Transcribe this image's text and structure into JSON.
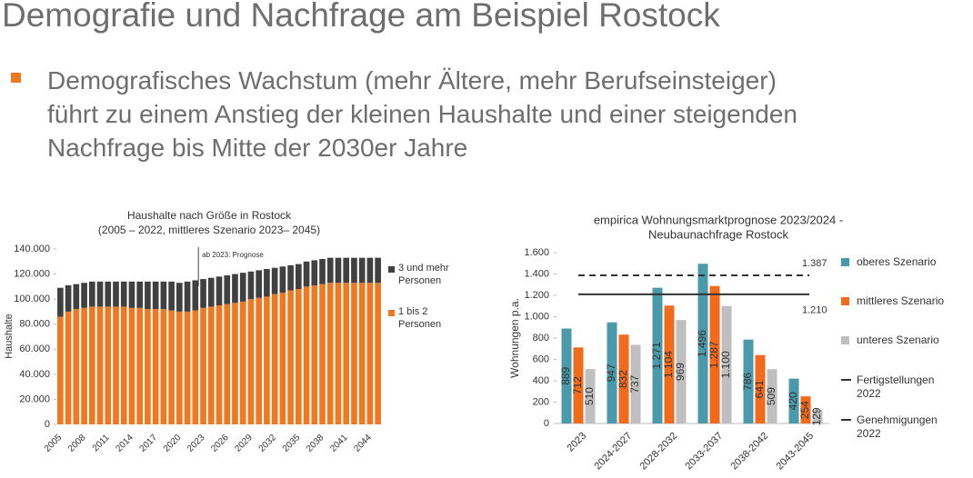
{
  "title": "Demografie und Nachfrage am Beispiel Rostock",
  "bullet": [
    "Demografisches Wachstum (mehr Ältere, mehr Berufseinsteiger)",
    "führt zu einem Anstieg der kleinen Haushalte und einer steigenden",
    "Nachfrage bis Mitte der 2030er Jahre"
  ],
  "chart_data": [
    {
      "type": "stacked_bar",
      "title": "Haushalte nach Größe in Rostock",
      "subtitle": "(2005 – 2022, mittleres Szenario 2023– 2045)",
      "y_label": "Haushalte",
      "categories": [
        "2005",
        null,
        null,
        "2008",
        null,
        null,
        "2011",
        null,
        null,
        "2014",
        null,
        null,
        "2017",
        null,
        null,
        "2020",
        null,
        null,
        "2023",
        null,
        null,
        "2026",
        null,
        null,
        "2029",
        null,
        null,
        "2032",
        null,
        null,
        "2035",
        null,
        null,
        "2038",
        null,
        null,
        "2041",
        null,
        null,
        "2044",
        null
      ],
      "series": [
        {
          "name": "1 bis 2 Personen",
          "color": "#f07820",
          "values": [
            86000,
            90000,
            92000,
            93000,
            94000,
            94000,
            94000,
            94000,
            94000,
            93000,
            93000,
            92000,
            92000,
            92000,
            91000,
            90000,
            90000,
            91000,
            93000,
            94000,
            95000,
            96000,
            97000,
            98000,
            100000,
            101000,
            102000,
            104000,
            105000,
            107000,
            108000,
            110000,
            111000,
            112000,
            113000,
            113000,
            113000,
            113000,
            113000,
            113000,
            113000
          ]
        },
        {
          "name": "3 und mehr Personen",
          "color": "#404040",
          "values": [
            23000,
            21000,
            20000,
            20000,
            20000,
            20000,
            20000,
            20000,
            20000,
            21000,
            21000,
            22000,
            22000,
            22000,
            23000,
            23000,
            24000,
            24000,
            23000,
            23000,
            23000,
            23000,
            23000,
            23000,
            22000,
            22000,
            22000,
            21000,
            21000,
            20000,
            20000,
            20000,
            20000,
            20000,
            20000,
            20000,
            20000,
            20000,
            20000,
            20000,
            20000
          ]
        }
      ],
      "ylim": [
        0,
        140000
      ],
      "yticks": [
        0,
        {
          "value": 20000,
          "label": "20.000"
        },
        {
          "value": 40000,
          "label": "40.000"
        },
        {
          "value": 60000,
          "label": "60.000"
        },
        {
          "value": 80000,
          "label": "80.000"
        },
        {
          "value": 100000,
          "label": "100.000"
        },
        {
          "value": 120000,
          "label": "120.000"
        },
        {
          "value": 140000,
          "label": "140.000"
        }
      ],
      "annotation": {
        "text": "ab 2023: Prognose",
        "category": "2023"
      },
      "legend": "right"
    },
    {
      "type": "bar",
      "title": "empirica Wohnungsmarktprognose 2023/2024 -",
      "subtitle": "Neubaunachfrage Rostock",
      "y_label": "Wohnungen p.a.",
      "categories": [
        "2023",
        "2024-2027",
        "2028-2032",
        "2033-2037",
        "2038-2042",
        "2043-2045"
      ],
      "series": [
        {
          "name": "oberes Szenario",
          "color": "#4a9aab",
          "values": [
            889,
            947,
            1271,
            1496,
            786,
            420
          ],
          "value_labels": [
            "889",
            "947",
            "1.271",
            "1.496",
            "786",
            "420"
          ]
        },
        {
          "name": "mittleres Szenario",
          "color": "#f26b1d",
          "values": [
            712,
            832,
            1104,
            1287,
            641,
            254
          ],
          "value_labels": [
            "712",
            "832",
            "1.104",
            "1.287",
            "641",
            "254"
          ]
        },
        {
          "name": "unteres Szenario",
          "color": "#bfbfbf",
          "values": [
            510,
            737,
            969,
            1100,
            509,
            129
          ],
          "value_labels": [
            "510",
            "737",
            "969",
            "1.100",
            "509",
            "129"
          ]
        }
      ],
      "reference_lines": [
        {
          "name": "Fertigstellungen 2022",
          "value": 1210,
          "value_label": "1.210",
          "dash": false
        },
        {
          "name": "Genehmigungen 2022",
          "value": 1387,
          "value_label": "1.387",
          "dash": true
        }
      ],
      "ylim": [
        0,
        1600
      ],
      "yticks": [
        0,
        200,
        400,
        600,
        800,
        {
          "value": 1000,
          "label": "1.000"
        },
        {
          "value": 1200,
          "label": "1.200"
        },
        {
          "value": 1400,
          "label": "1.400"
        },
        {
          "value": 1600,
          "label": "1.600"
        }
      ],
      "legend": "right"
    }
  ]
}
